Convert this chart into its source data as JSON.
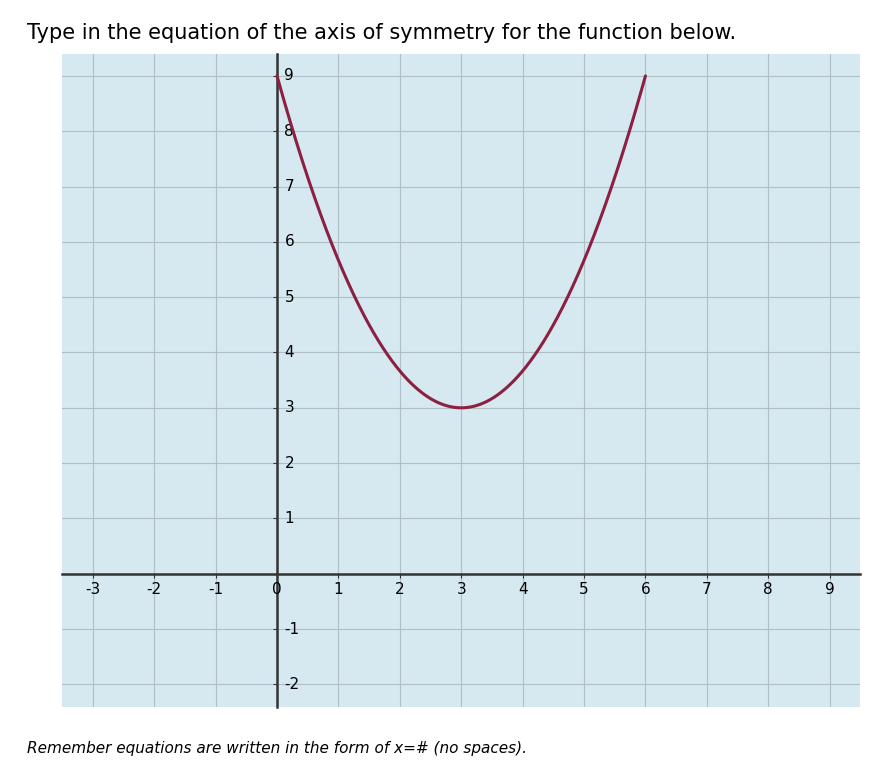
{
  "title": "Type in the equation of the axis of symmetry for the function below.",
  "subtitle": "Remember equations are written in the form of x=# (no spaces).",
  "parabola_vertex_x": 3,
  "parabola_vertex_y": 3,
  "parabola_a": 0.6667,
  "x_min": -3,
  "x_max": 9,
  "y_min": -2,
  "y_max": 9,
  "curve_color": "#8B2040",
  "curve_linewidth": 2.2,
  "grid_color": "#b0bec5",
  "background_color": "#d6e8f0",
  "axis_color": "#333333",
  "title_fontsize": 15,
  "subtitle_fontsize": 11,
  "tick_fontsize": 11,
  "x_ticks": [
    -3,
    -2,
    -1,
    0,
    1,
    2,
    3,
    4,
    5,
    6,
    7,
    8,
    9
  ],
  "y_ticks": [
    -2,
    -1,
    0,
    1,
    2,
    3,
    4,
    5,
    6,
    7,
    8,
    9
  ]
}
